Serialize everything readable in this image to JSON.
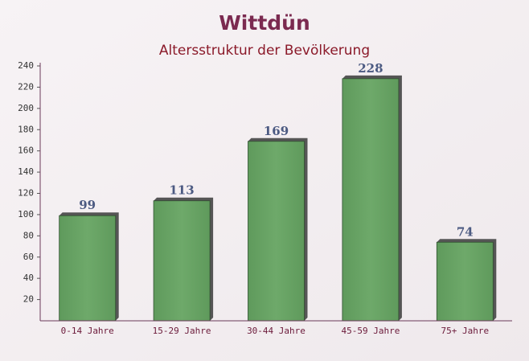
{
  "chart_data": {
    "type": "bar",
    "title": "Wittdün",
    "subtitle": "Altersstruktur der Bevölkerung",
    "categories": [
      "0-14 Jahre",
      "15-29 Jahre",
      "30-44 Jahre",
      "45-59 Jahre",
      "75+ Jahre"
    ],
    "values": [
      99,
      113,
      169,
      228,
      74
    ],
    "color": "#6aa866",
    "ylim": [
      0,
      240
    ],
    "yticks": [
      20,
      40,
      60,
      80,
      100,
      120,
      140,
      160,
      180,
      200,
      220,
      240
    ],
    "grid": false
  }
}
